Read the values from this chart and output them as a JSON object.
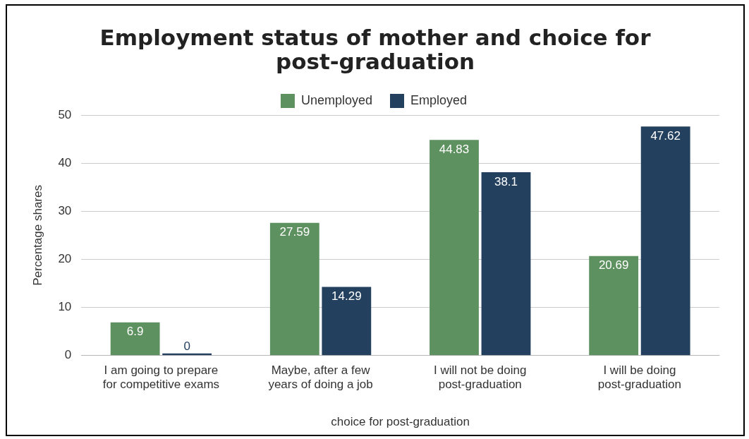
{
  "chart_data": {
    "type": "bar",
    "title": "Employment status of mother and choice for post-graduation",
    "xlabel": "choice for post-graduation",
    "ylabel": "Percentage shares",
    "categories": [
      "I am going to prepare for competitive exams",
      "Maybe, after a few years of doing a job",
      "I will not be doing post-graduation",
      "I will be doing post-graduation"
    ],
    "series": [
      {
        "name": "Unemployed",
        "color": "#5e9160",
        "values": [
          6.9,
          27.59,
          44.83,
          20.69
        ]
      },
      {
        "name": "Employed",
        "color": "#24405f",
        "values": [
          0,
          14.29,
          38.1,
          47.62
        ]
      }
    ],
    "ylim": [
      0,
      50
    ],
    "yticks": [
      0,
      10,
      20,
      30,
      40,
      50
    ],
    "grid": "y",
    "legend": "top",
    "data_labels": true
  }
}
